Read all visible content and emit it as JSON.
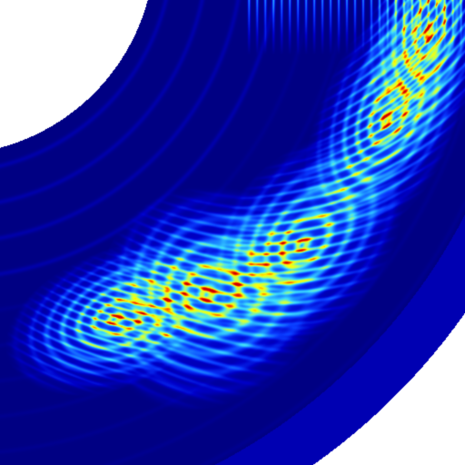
{
  "image": {
    "kind": "fractal-density-render",
    "palette": [
      "#00007a",
      "#0000c8",
      "#0a3cff",
      "#1e90ff",
      "#3cdcff",
      "#b4ff64",
      "#ffff00",
      "#ff5000",
      "#cc0000"
    ],
    "background": "#ffffff",
    "ring_base_color": "#000078"
  }
}
